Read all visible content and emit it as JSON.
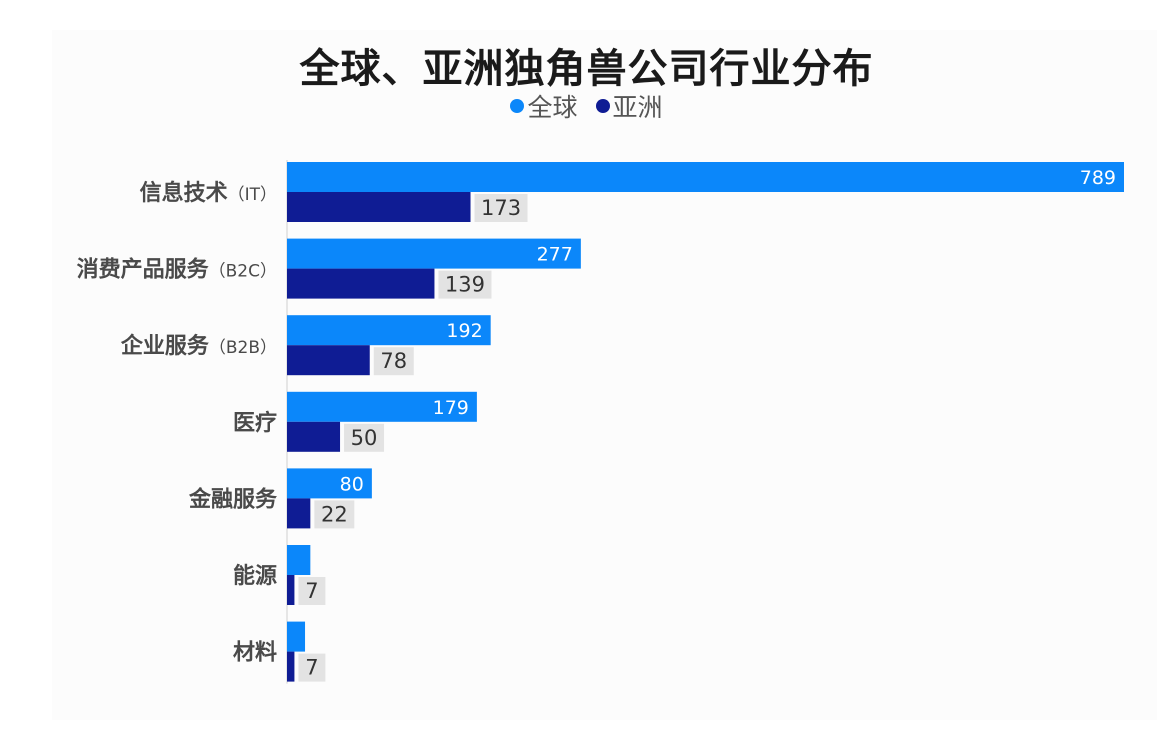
{
  "colors": {
    "global": "#0b87fa",
    "asia": "#0f1c94",
    "label_bg": "#e3e3e3"
  },
  "chart_data": {
    "type": "bar",
    "orientation": "horizontal",
    "title": "全球、亚洲独角兽公司行业分布",
    "legend_position": "top-center",
    "categories": [
      {
        "name": "信息技术",
        "suffix": "（IT）"
      },
      {
        "name": "消费产品服务",
        "suffix": "（B2C）"
      },
      {
        "name": "企业服务",
        "suffix": "（B2B）"
      },
      {
        "name": "医疗",
        "suffix": ""
      },
      {
        "name": "金融服务",
        "suffix": ""
      },
      {
        "name": "能源",
        "suffix": ""
      },
      {
        "name": "材料",
        "suffix": ""
      }
    ],
    "series": [
      {
        "name": "全球",
        "values": [
          789,
          277,
          192,
          179,
          80,
          22,
          17
        ],
        "labels_shown": [
          true,
          true,
          true,
          true,
          true,
          false,
          false
        ]
      },
      {
        "name": "亚洲",
        "values": [
          173,
          139,
          78,
          50,
          22,
          7,
          7
        ],
        "labels_shown": [
          true,
          true,
          true,
          true,
          true,
          true,
          true
        ]
      }
    ],
    "xlim": [
      0,
      789
    ],
    "grid": false
  }
}
